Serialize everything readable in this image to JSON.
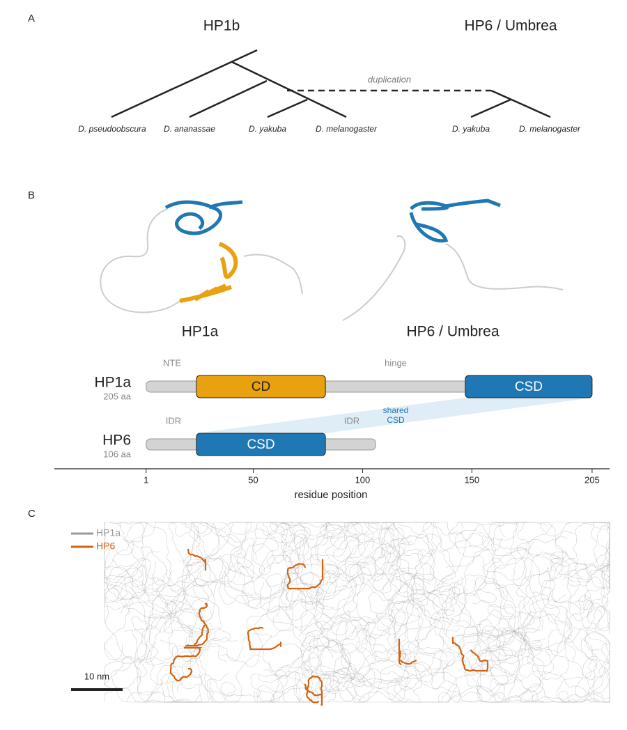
{
  "panel_a": {
    "label": "A",
    "titles": [
      "HP1b",
      "HP6 / Umbrea"
    ],
    "species": [
      "D. pseudoobscura",
      "D. ananassae",
      "D. yakuba",
      "D. melanogaster",
      "D. yakuba",
      "D. melanogaster"
    ],
    "annotation": "duplication"
  },
  "panel_b": {
    "label": "B",
    "structure_labels": [
      "HP1a",
      "HP6 / Umbrea"
    ],
    "domain_map": {
      "xlim": [
        -41,
        213
      ],
      "xticks": [
        1,
        50,
        100,
        150,
        205
      ],
      "xlabel": "residue position",
      "proteins": [
        {
          "name": "HP1a",
          "length_label": "205 aa",
          "length": 205,
          "domains": [
            {
              "name": "CD",
              "start": 24,
              "end": 83,
              "color": "#e8a10f"
            },
            {
              "name": "CSD",
              "start": 147,
              "end": 205,
              "color": "#1f77b4"
            }
          ],
          "region_labels": [
            "NTE",
            "hinge"
          ]
        },
        {
          "name": "HP6",
          "length_label": "106 aa",
          "length": 106,
          "domains": [
            {
              "name": "CSD",
              "start": 24,
              "end": 83,
              "color": "#1f77b4"
            }
          ],
          "region_labels": [
            "IDR",
            "IDR"
          ]
        }
      ],
      "shared_label": [
        "shared",
        "CSD"
      ]
    }
  },
  "panel_c": {
    "label": "C",
    "legend": [
      {
        "name": "HP1a",
        "color": "#999999"
      },
      {
        "name": "HP6",
        "color": "#d4620f"
      }
    ],
    "scale_bar": "10 nm"
  }
}
